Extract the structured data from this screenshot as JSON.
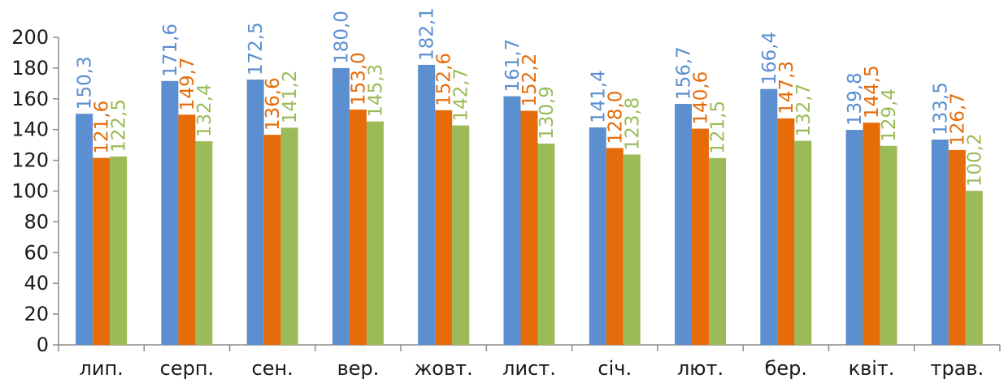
{
  "chart_data": {
    "type": "bar",
    "categories": [
      "лип.",
      "серп.",
      "сен.",
      "вер.",
      "жовт.",
      "лист.",
      "січ.",
      "лют.",
      "бер.",
      "квіт.",
      "трав."
    ],
    "series": [
      {
        "values": [
          150.3,
          171.6,
          172.5,
          180.0,
          182.1,
          161.7,
          141.4,
          156.7,
          166.4,
          139.8,
          133.5
        ],
        "labels": [
          "150,3",
          "171,6",
          "172,5",
          "180,0",
          "182,1",
          "161,7",
          "141,4",
          "156,7",
          "166,4",
          "139,8",
          "133,5"
        ],
        "color": "#5b8fcf"
      },
      {
        "values": [
          121.6,
          149.7,
          136.6,
          153.0,
          152.6,
          152.2,
          128.0,
          140.6,
          147.3,
          144.5,
          126.7
        ],
        "labels": [
          "121,6",
          "149,7",
          "136,6",
          "153,0",
          "152,6",
          "152,2",
          "128,0",
          "140,6",
          "147,3",
          "144,5",
          "126,7"
        ],
        "color": "#e66c0a"
      },
      {
        "values": [
          122.5,
          132.4,
          141.2,
          145.3,
          142.7,
          130.9,
          123.8,
          121.5,
          132.7,
          129.4,
          100.2
        ],
        "labels": [
          "122,5",
          "132,4",
          "141,2",
          "145,3",
          "142,7",
          "130,9",
          "123,8",
          "121,5",
          "132,7",
          "129,4",
          "100,2"
        ],
        "color": "#9bbb59"
      }
    ],
    "y_ticks": [
      "0",
      "20",
      "40",
      "60",
      "80",
      "100",
      "120",
      "140",
      "160",
      "180",
      "200"
    ],
    "ylim": [
      0,
      200
    ],
    "grid": false,
    "legend": "none",
    "data_label_orientation": "vertical"
  }
}
